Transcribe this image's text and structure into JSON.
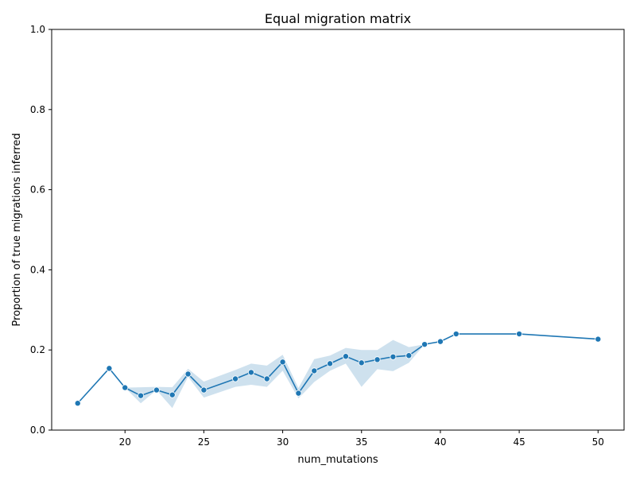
{
  "chart_data": {
    "type": "line",
    "title": "Equal migration matrix",
    "xlabel": "num_mutations",
    "ylabel": "Proportion of true migrations inferred",
    "xlim": [
      15.35,
      51.65
    ],
    "ylim": [
      0.0,
      1.0
    ],
    "xticks": [
      20,
      25,
      30,
      35,
      40,
      45,
      50
    ],
    "yticks": [
      0.0,
      0.2,
      0.4,
      0.6,
      0.8,
      1.0
    ],
    "xtick_labels": [
      "20",
      "25",
      "30",
      "35",
      "40",
      "45",
      "50"
    ],
    "ytick_labels": [
      "0.0",
      "0.2",
      "0.4",
      "0.6",
      "0.8",
      "1.0"
    ],
    "grid": false,
    "legend": null,
    "colors": {
      "line": "#1f77b4",
      "band": "#a6c8e0"
    },
    "series": [
      {
        "x": [
          17,
          19,
          20,
          21,
          22,
          23,
          24,
          25,
          27,
          28,
          29,
          30,
          31,
          32,
          33,
          34,
          35,
          36,
          37,
          38,
          39,
          40,
          41,
          45,
          50
        ],
        "y": [
          0.067,
          0.154,
          0.106,
          0.086,
          0.1,
          0.088,
          0.14,
          0.1,
          0.128,
          0.144,
          0.128,
          0.17,
          0.092,
          0.148,
          0.166,
          0.184,
          0.168,
          0.176,
          0.183,
          0.186,
          0.214,
          0.221,
          0.24,
          0.24,
          0.227
        ],
        "ci_low": [
          0.067,
          0.154,
          0.106,
          0.067,
          0.1,
          0.055,
          0.133,
          0.081,
          0.108,
          0.113,
          0.108,
          0.148,
          0.079,
          0.12,
          0.148,
          0.166,
          0.108,
          0.152,
          0.147,
          0.168,
          0.214,
          0.221,
          0.24,
          0.24,
          0.227
        ],
        "ci_high": [
          0.067,
          0.154,
          0.106,
          0.107,
          0.108,
          0.107,
          0.153,
          0.121,
          0.15,
          0.166,
          0.161,
          0.188,
          0.105,
          0.177,
          0.186,
          0.205,
          0.2,
          0.2,
          0.225,
          0.207,
          0.214,
          0.221,
          0.24,
          0.24,
          0.227
        ]
      }
    ]
  }
}
